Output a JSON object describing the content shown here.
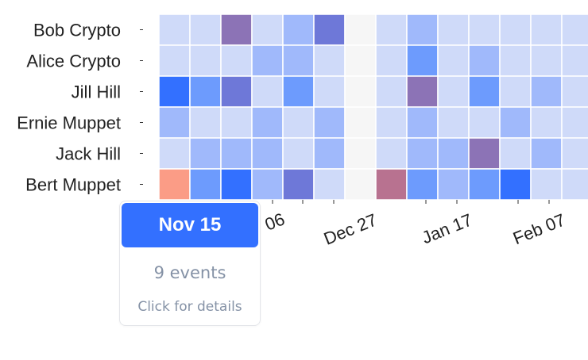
{
  "chart_data": {
    "type": "heatmap",
    "rows": [
      "Bob Crypto",
      "Alice Crypto",
      "Jill Hill",
      "Ernie Muppet",
      "Jack Hill",
      "Bert Muppet"
    ],
    "x_tick_labels": [
      "06",
      "Dec 27",
      "Jan 17",
      "Feb 07"
    ],
    "colors": {
      "c0": "#cfdaf9",
      "c1": "#a0b9fb",
      "c2": "#6d9bfd",
      "c3": "#3370ff",
      "p1": "#8c73b6",
      "p2": "#6e78d8",
      "red": "#fb9c86",
      "mauve": "#b87290",
      "missing": "#f6f6f6"
    },
    "cells": [
      [
        "c0",
        "c0",
        "p1",
        "c0",
        "c1",
        "p2",
        "missing",
        "c0",
        "c1",
        "c0",
        "c0",
        "c0",
        "c0",
        "c0"
      ],
      [
        "c0",
        "c0",
        "c0",
        "c1",
        "c1",
        "c0",
        "missing",
        "c0",
        "c2",
        "c0",
        "c1",
        "c0",
        "c0",
        "c0"
      ],
      [
        "c3",
        "c2",
        "p2",
        "c0",
        "c2",
        "c0",
        "missing",
        "c0",
        "p1",
        "c0",
        "c2",
        "c0",
        "c1",
        "c0"
      ],
      [
        "c1",
        "c0",
        "c0",
        "c1",
        "c0",
        "c1",
        "missing",
        "c0",
        "c1",
        "c0",
        "c0",
        "c1",
        "c0",
        "c0"
      ],
      [
        "c0",
        "c1",
        "c1",
        "c1",
        "c0",
        "c1",
        "missing",
        "c0",
        "c1",
        "c1",
        "p1",
        "c0",
        "c1",
        "c0"
      ],
      [
        "red",
        "c2",
        "c3",
        "c1",
        "p2",
        "c0",
        "missing",
        "mauve",
        "c2",
        "c1",
        "c2",
        "c3",
        "c0",
        "c0"
      ]
    ]
  },
  "tooltip": {
    "date": "Nov 15",
    "count_text": "9 events",
    "hint": "Click for details"
  }
}
